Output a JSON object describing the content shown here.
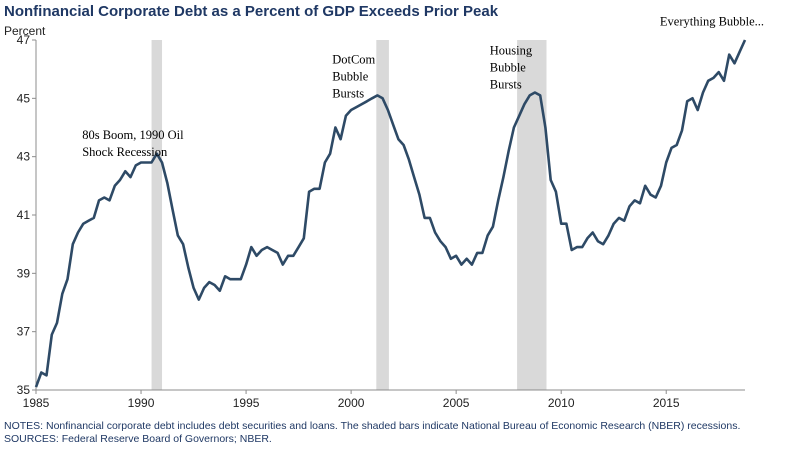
{
  "chart_data": {
    "type": "line",
    "title": "Nonfinancial Corporate Debt as a Percent of GDP Exceeds Prior Peak",
    "ylabel": "Percent",
    "xlabel": "",
    "xlim": [
      1985,
      2018.75
    ],
    "ylim": [
      35,
      47
    ],
    "xticks": [
      1985,
      1990,
      1995,
      2000,
      2005,
      2010,
      2015
    ],
    "yticks": [
      35,
      37,
      39,
      41,
      43,
      45,
      47
    ],
    "grid": false,
    "line_color": "#2e4a66",
    "recession_color": "#d9d9d9",
    "recessions": [
      [
        1990.5,
        1991.0
      ],
      [
        2001.2,
        2001.8
      ],
      [
        2007.9,
        2009.3
      ]
    ],
    "annotations": [
      {
        "lines": [
          "80s Boom, 1990 Oil",
          "Shock Recession"
        ],
        "x": 1987.2,
        "y": 43.6
      },
      {
        "lines": [
          "DotCom",
          "Bubble",
          "Bursts"
        ],
        "x": 1999.1,
        "y": 46.2
      },
      {
        "lines": [
          "Housing",
          "Bubble",
          "Bursts"
        ],
        "x": 2006.6,
        "y": 46.5
      },
      {
        "lines": [
          "Everything Bubble..."
        ],
        "x": 2014.7,
        "y": 47.5
      }
    ],
    "series": [
      {
        "x": [
          1985.0,
          1985.25,
          1985.5,
          1985.75,
          1986.0,
          1986.25,
          1986.5,
          1986.75,
          1987.0,
          1987.25,
          1987.5,
          1987.75,
          1988.0,
          1988.25,
          1988.5,
          1988.75,
          1989.0,
          1989.25,
          1989.5,
          1989.75,
          1990.0,
          1990.25,
          1990.5,
          1990.75,
          1991.0,
          1991.25,
          1991.5,
          1991.75,
          1992.0,
          1992.25,
          1992.5,
          1992.75,
          1993.0,
          1993.25,
          1993.5,
          1993.75,
          1994.0,
          1994.25,
          1994.5,
          1994.75,
          1995.0,
          1995.25,
          1995.5,
          1995.75,
          1996.0,
          1996.25,
          1996.5,
          1996.75,
          1997.0,
          1997.25,
          1997.5,
          1997.75,
          1998.0,
          1998.25,
          1998.5,
          1998.75,
          1999.0,
          1999.25,
          1999.5,
          1999.75,
          2000.0,
          2000.25,
          2000.5,
          2000.75,
          2001.0,
          2001.25,
          2001.5,
          2001.75,
          2002.0,
          2002.25,
          2002.5,
          2002.75,
          2003.0,
          2003.25,
          2003.5,
          2003.75,
          2004.0,
          2004.25,
          2004.5,
          2004.75,
          2005.0,
          2005.25,
          2005.5,
          2005.75,
          2006.0,
          2006.25,
          2006.5,
          2006.75,
          2007.0,
          2007.25,
          2007.5,
          2007.75,
          2008.0,
          2008.25,
          2008.5,
          2008.75,
          2009.0,
          2009.25,
          2009.5,
          2009.75,
          2010.0,
          2010.25,
          2010.5,
          2010.75,
          2011.0,
          2011.25,
          2011.5,
          2011.75,
          2012.0,
          2012.25,
          2012.5,
          2012.75,
          2013.0,
          2013.25,
          2013.5,
          2013.75,
          2014.0,
          2014.25,
          2014.5,
          2014.75,
          2015.0,
          2015.25,
          2015.5,
          2015.75,
          2016.0,
          2016.25,
          2016.5,
          2016.75,
          2017.0,
          2017.25,
          2017.5,
          2017.75,
          2018.0,
          2018.25,
          2018.5,
          2018.75
        ],
        "values": [
          35.1,
          35.6,
          35.5,
          36.9,
          37.3,
          38.3,
          38.8,
          40.0,
          40.4,
          40.7,
          40.8,
          40.9,
          41.5,
          41.6,
          41.5,
          42.0,
          42.2,
          42.5,
          42.3,
          42.7,
          42.8,
          42.8,
          42.8,
          43.1,
          42.8,
          42.1,
          41.2,
          40.3,
          40.0,
          39.2,
          38.5,
          38.1,
          38.5,
          38.7,
          38.6,
          38.4,
          38.9,
          38.8,
          38.8,
          38.8,
          39.3,
          39.9,
          39.6,
          39.8,
          39.9,
          39.8,
          39.7,
          39.3,
          39.6,
          39.6,
          39.9,
          40.2,
          41.8,
          41.9,
          41.9,
          42.8,
          43.1,
          44.0,
          43.6,
          44.4,
          44.6,
          44.7,
          44.8,
          44.9,
          45.0,
          45.1,
          45.0,
          44.6,
          44.1,
          43.6,
          43.4,
          42.9,
          42.3,
          41.7,
          40.9,
          40.9,
          40.4,
          40.1,
          39.9,
          39.5,
          39.6,
          39.3,
          39.5,
          39.3,
          39.7,
          39.7,
          40.3,
          40.6,
          41.5,
          42.3,
          43.2,
          44.0,
          44.4,
          44.8,
          45.1,
          45.2,
          45.1,
          44.0,
          42.2,
          41.8,
          40.7,
          40.7,
          39.8,
          39.9,
          39.9,
          40.2,
          40.4,
          40.1,
          40.0,
          40.3,
          40.7,
          40.9,
          40.8,
          41.3,
          41.5,
          41.4,
          42.0,
          41.7,
          41.6,
          42.0,
          42.8,
          43.3,
          43.4,
          43.9,
          44.9,
          45.0,
          44.6,
          45.2,
          45.6,
          45.7,
          45.9,
          45.6,
          46.5,
          46.2,
          46.6,
          47.0
        ]
      }
    ]
  },
  "notes": [
    "NOTES: Nonfinancial corporate debt includes debt securities and loans. The shaded bars indicate National Bureau of Economic Research (NBER) recessions.",
    "SOURCES: Federal Reserve Board of Governors; NBER."
  ]
}
